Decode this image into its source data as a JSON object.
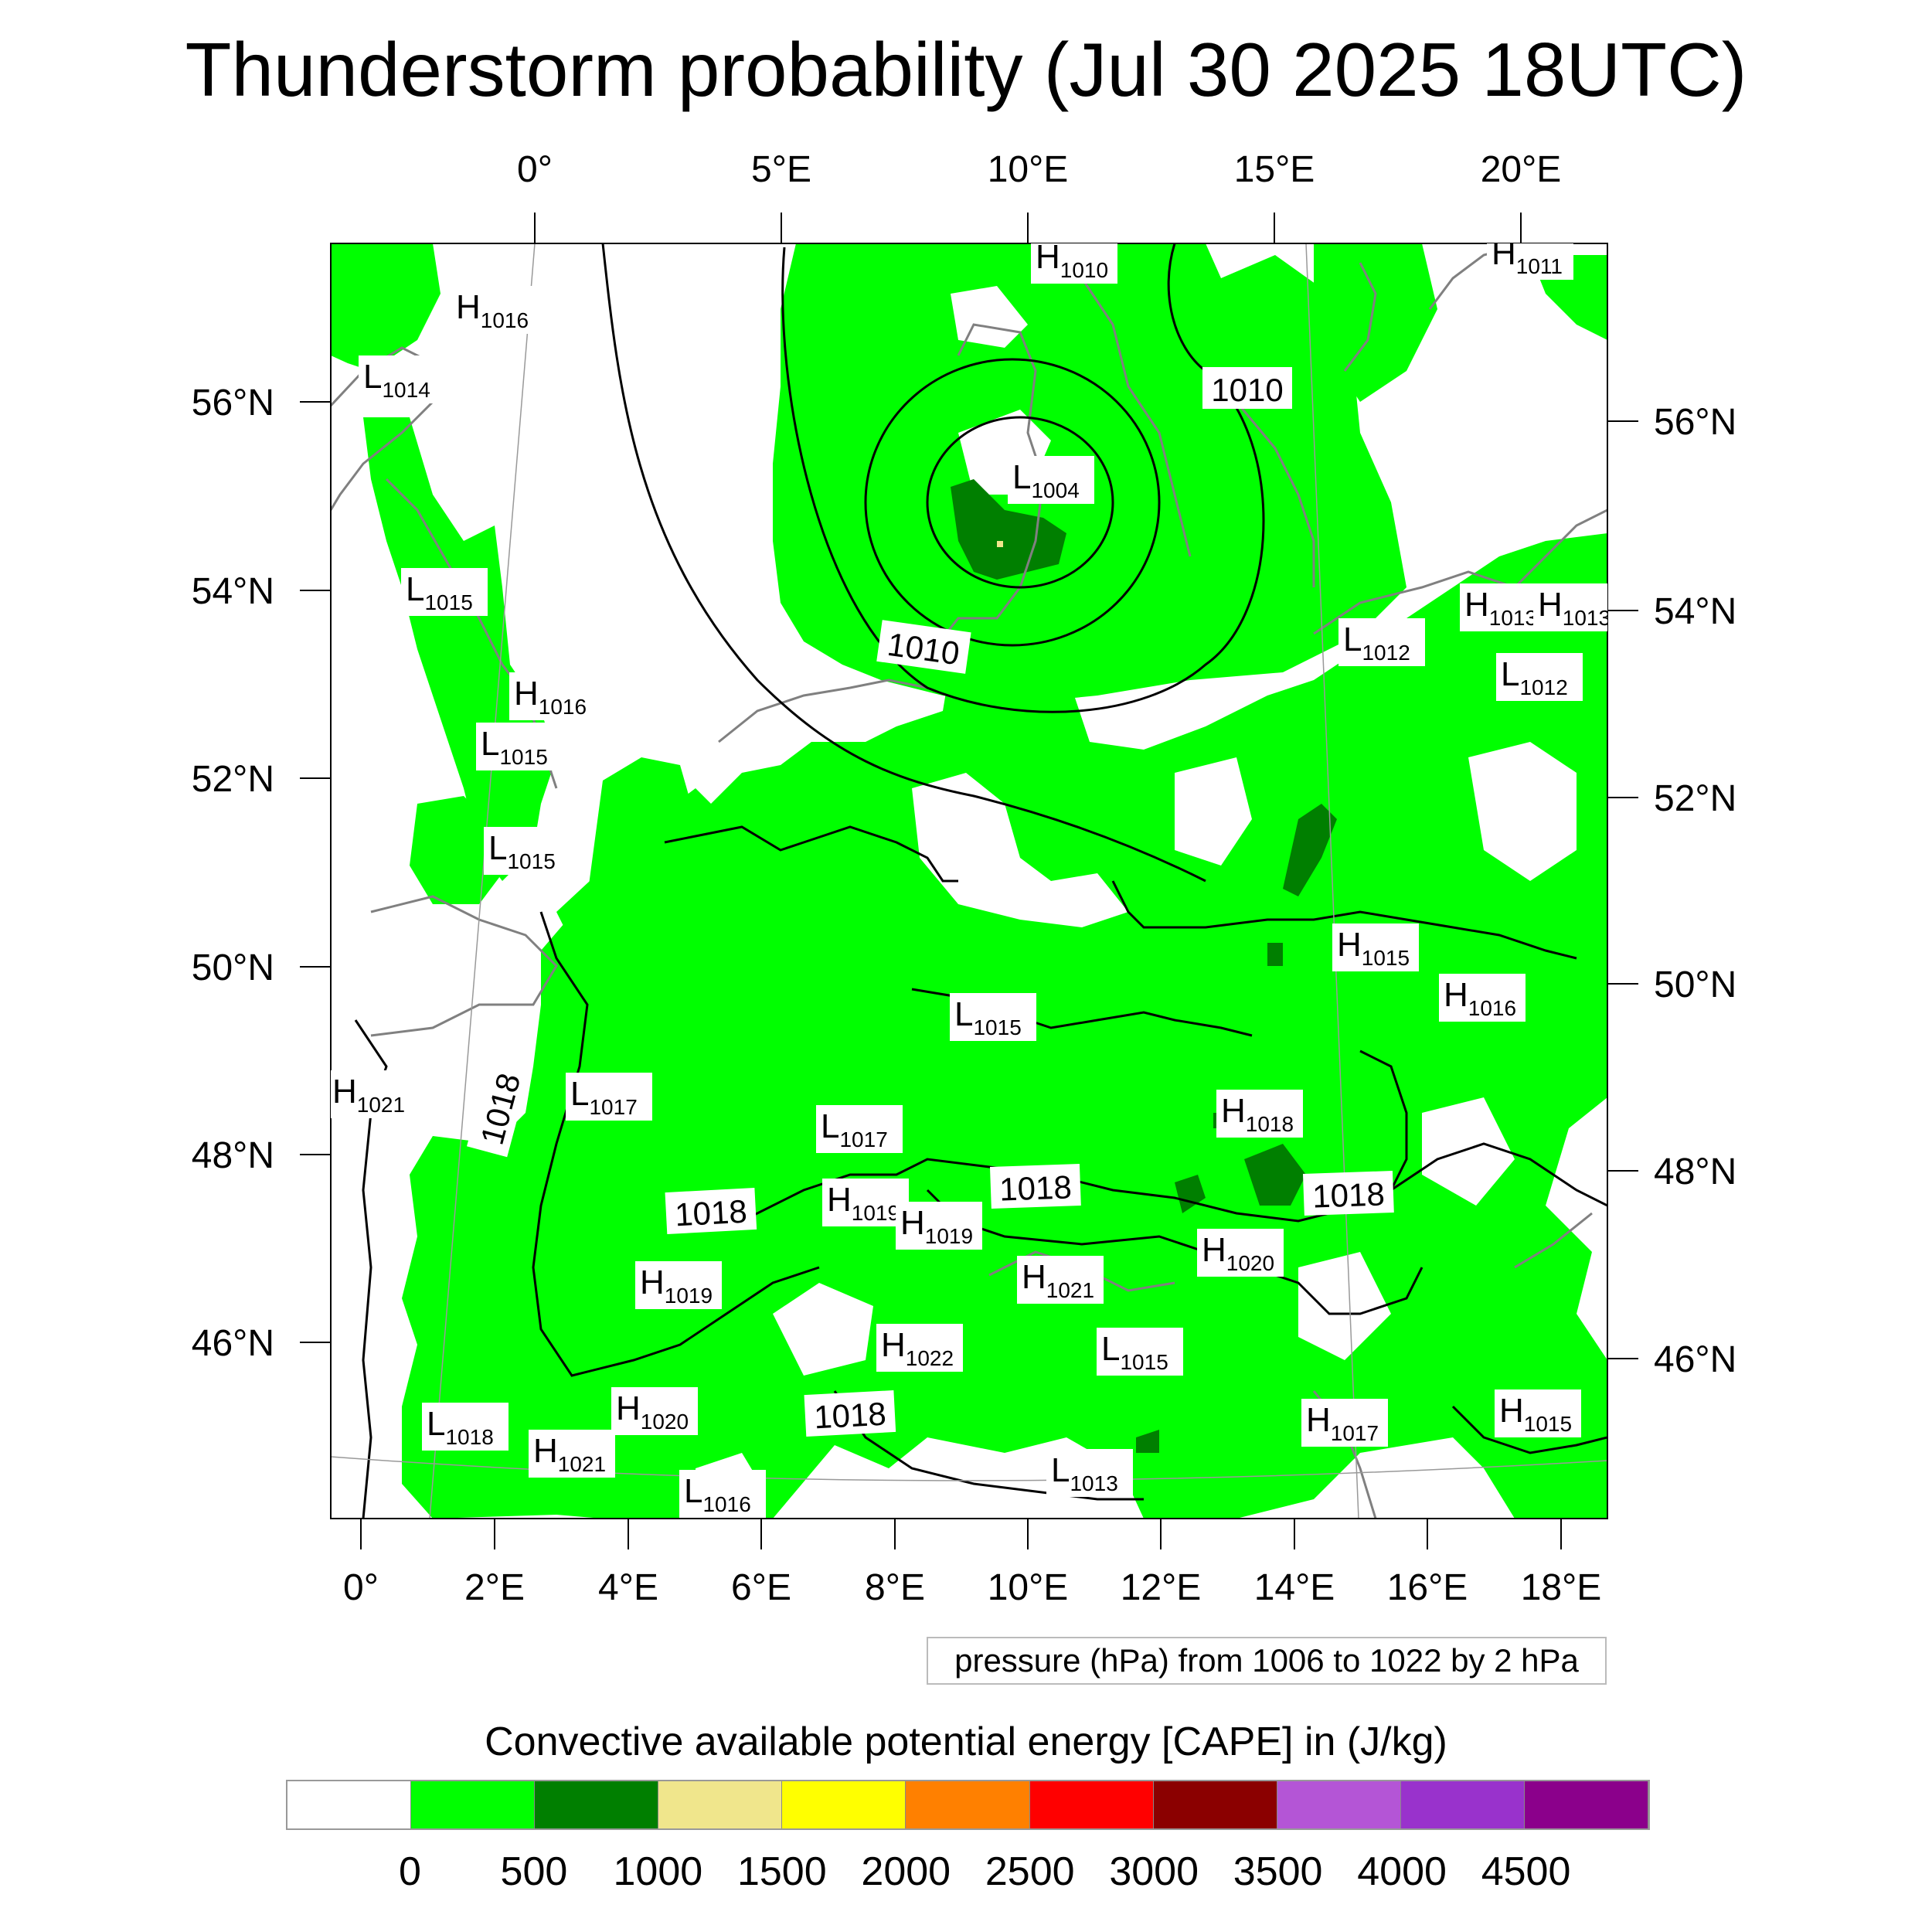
{
  "title": "Thunderstorm probability (Jul 30 2025 18UTC)",
  "top_lon_labels": [
    "0°",
    "5°E",
    "10°E",
    "15°E",
    "20°E"
  ],
  "bottom_lon_labels": [
    "0°",
    "2°E",
    "4°E",
    "6°E",
    "8°E",
    "10°E",
    "12°E",
    "14°E",
    "16°E",
    "18°E"
  ],
  "left_lat_labels": [
    "56°N",
    "54°N",
    "52°N",
    "50°N",
    "48°N",
    "46°N"
  ],
  "right_lat_labels": [
    "56°N",
    "54°N",
    "52°N",
    "50°N",
    "48°N",
    "46°N"
  ],
  "pressure_note": "pressure (hPa) from 1006 to 1022 by 2 hPa",
  "colorbar": {
    "title": "Convective available potential energy [CAPE] in (J/kg)",
    "tick_labels": [
      "0",
      "500",
      "1000",
      "1500",
      "2000",
      "2500",
      "3000",
      "3500",
      "4000",
      "4500"
    ],
    "colors": [
      "#ffffff",
      "#00ff00",
      "#007f00",
      "#f0e68c",
      "#ffff00",
      "#ff8000",
      "#ff0000",
      "#8b0000",
      "#b455d6",
      "#9932cc",
      "#8b008b"
    ]
  },
  "isobar_labels": [
    "1010",
    "1010",
    "1018",
    "1018",
    "1018",
    "1018",
    "1018"
  ],
  "pressure_centers": [
    {
      "type": "H",
      "value": "1010"
    },
    {
      "type": "H",
      "value": "1011"
    },
    {
      "type": "H",
      "value": "1016"
    },
    {
      "type": "L",
      "value": "1014"
    },
    {
      "type": "L",
      "value": "1004"
    },
    {
      "type": "L",
      "value": "1015"
    },
    {
      "type": "H",
      "value": "1016"
    },
    {
      "type": "L",
      "value": "1015"
    },
    {
      "type": "L",
      "value": "1015"
    },
    {
      "type": "H",
      "value": "1013"
    },
    {
      "type": "H",
      "value": "1013"
    },
    {
      "type": "L",
      "value": "1012"
    },
    {
      "type": "L",
      "value": "1012"
    },
    {
      "type": "H",
      "value": "1015"
    },
    {
      "type": "H",
      "value": "1016"
    },
    {
      "type": "L",
      "value": "1015"
    },
    {
      "type": "H",
      "value": "1021"
    },
    {
      "type": "L",
      "value": "1017"
    },
    {
      "type": "L",
      "value": "1017"
    },
    {
      "type": "H",
      "value": "1018"
    },
    {
      "type": "H",
      "value": "1019"
    },
    {
      "type": "H",
      "value": "1019"
    },
    {
      "type": "H",
      "value": "1019"
    },
    {
      "type": "H",
      "value": "1020"
    },
    {
      "type": "H",
      "value": "1021"
    },
    {
      "type": "H",
      "value": "1022"
    },
    {
      "type": "L",
      "value": "1015"
    },
    {
      "type": "L",
      "value": "1018"
    },
    {
      "type": "H",
      "value": "1020"
    },
    {
      "type": "H",
      "value": "1021"
    },
    {
      "type": "L",
      "value": "1016"
    },
    {
      "type": "L",
      "value": "1013"
    },
    {
      "type": "H",
      "value": "1017"
    },
    {
      "type": "H",
      "value": "1015"
    }
  ]
}
